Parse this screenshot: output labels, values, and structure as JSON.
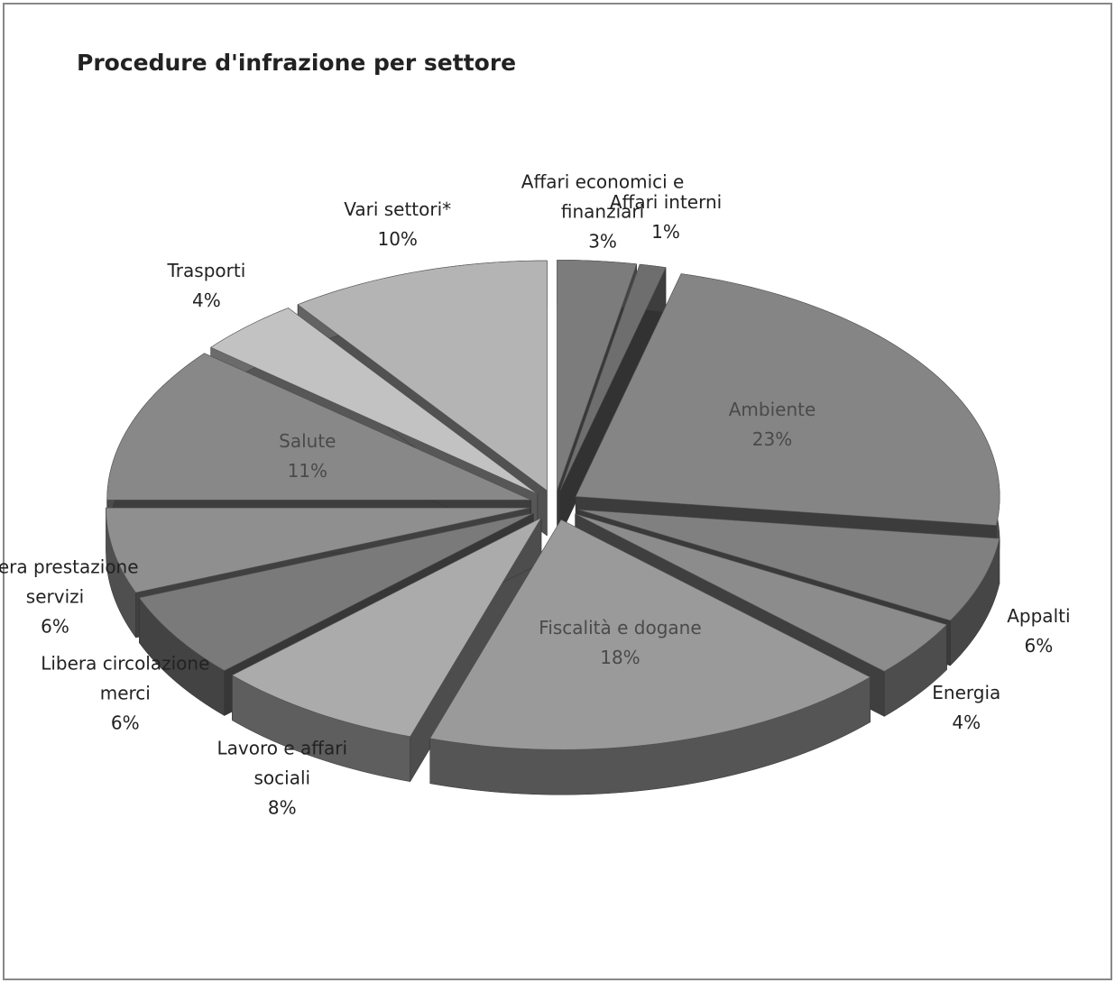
{
  "chart_data": {
    "type": "pie",
    "title": "Procedure d'infrazione per settore",
    "categories": [
      "Affari economici e finanziari",
      "Affari interni",
      "Ambiente",
      "Appalti",
      "Energia",
      "Fiscalità e dogane",
      "Lavoro e affari sociali",
      "Libera circolazione merci",
      "Libera prestazione servizi",
      "Salute",
      "Trasporti",
      "Vari settori*"
    ],
    "values": [
      3,
      1,
      23,
      6,
      4,
      18,
      8,
      6,
      6,
      11,
      4,
      10
    ],
    "value_labels": [
      "3%",
      "1%",
      "23%",
      "6%",
      "4%",
      "18%",
      "8%",
      "6%",
      "6%",
      "11%",
      "4%",
      "10%"
    ],
    "colors": [
      "#7c7c7c",
      "#6e6e6e",
      "#858585",
      "#808080",
      "#8c8c8c",
      "#9a9a9a",
      "#ababab",
      "#7a7a7a",
      "#8f8f8f",
      "#888888",
      "#c2c2c2",
      "#b4b4b4"
    ]
  }
}
